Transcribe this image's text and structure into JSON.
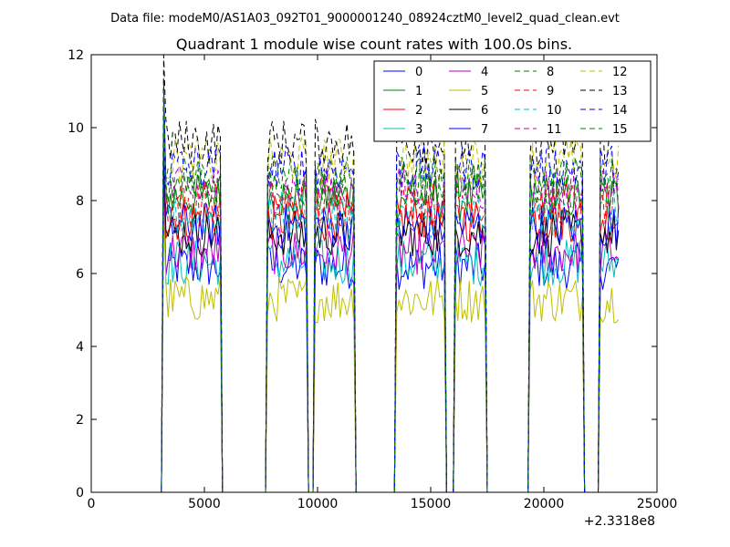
{
  "suptitle": "Data file: modeM0/AS1A03_092T01_9000001240_08924cztM0_level2_quad_clean.evt",
  "chart_data": {
    "type": "line",
    "title": "Quadrant 1 module wise count rates with 100.0s bins.",
    "xlabel": "",
    "ylabel": "",
    "xlim": [
      0,
      25000
    ],
    "ylim": [
      0,
      12
    ],
    "x_ticks": [
      0,
      5000,
      10000,
      15000,
      20000,
      25000
    ],
    "y_ticks": [
      0,
      2,
      4,
      6,
      8,
      10,
      12
    ],
    "x_offset_label": "+2.3318e8",
    "legend_position": "top-right",
    "legend_columns": 4,
    "segments": [
      [
        3300,
        5700
      ],
      [
        7800,
        9500
      ],
      [
        9900,
        11600
      ],
      [
        13500,
        15600
      ],
      [
        16100,
        17400
      ],
      [
        19400,
        21700
      ],
      [
        22500,
        23300
      ]
    ],
    "series": [
      {
        "name": "0",
        "color": "#0000ff",
        "dash": false,
        "level": 6.2
      },
      {
        "name": "1",
        "color": "#008000",
        "dash": false,
        "level": 8.1
      },
      {
        "name": "2",
        "color": "#ff0000",
        "dash": false,
        "level": 7.5
      },
      {
        "name": "3",
        "color": "#00bfbf",
        "dash": false,
        "level": 6.3
      },
      {
        "name": "4",
        "color": "#bf00bf",
        "dash": false,
        "level": 6.6
      },
      {
        "name": "5",
        "color": "#bfbf00",
        "dash": false,
        "level": 5.3
      },
      {
        "name": "6",
        "color": "#000000",
        "dash": false,
        "level": 7.1
      },
      {
        "name": "7",
        "color": "#0000ff",
        "dash": false,
        "level": 7.3
      },
      {
        "name": "8",
        "color": "#008000",
        "dash": true,
        "level": 8.6
      },
      {
        "name": "9",
        "color": "#ff0000",
        "dash": true,
        "level": 7.9
      },
      {
        "name": "10",
        "color": "#00bfbf",
        "dash": true,
        "level": 7.6
      },
      {
        "name": "11",
        "color": "#bf00bf",
        "dash": true,
        "level": 8.3
      },
      {
        "name": "12",
        "color": "#bfbf00",
        "dash": true,
        "level": 9.1
      },
      {
        "name": "13",
        "color": "#000000",
        "dash": true,
        "level": 9.6
      },
      {
        "name": "14",
        "color": "#0000ff",
        "dash": true,
        "level": 8.9
      },
      {
        "name": "15",
        "color": "#008000",
        "dash": true,
        "level": 8.4
      }
    ]
  }
}
